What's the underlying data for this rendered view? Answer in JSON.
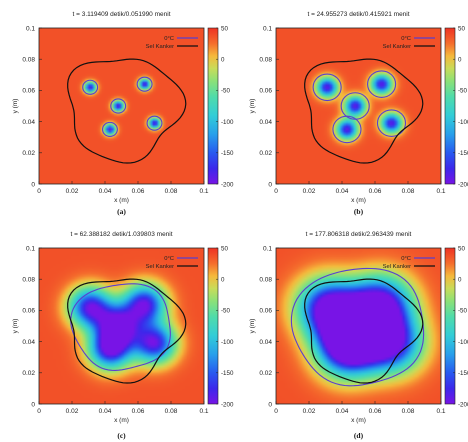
{
  "chart_data": [
    {
      "type": "heatmap",
      "panel_label": "(a)",
      "title": "t = 3.119409 detik/0.051990 menit",
      "xlabel": "x (m)",
      "ylabel": "y (m)",
      "xlim": [
        0,
        0.1
      ],
      "ylim": [
        0,
        0.1
      ],
      "x_ticks": [
        "0",
        "0.02",
        "0.04",
        "0.06",
        "0.08",
        "0.1"
      ],
      "y_ticks": [
        "0",
        "0.02",
        "0.04",
        "0.06",
        "0.08",
        "0.1"
      ],
      "colorbar": {
        "range": [
          -200,
          50
        ],
        "ticks": [
          "50",
          "0",
          "-50",
          "-100",
          "-150",
          "-200"
        ]
      },
      "legend": {
        "position": "top-right",
        "entries": [
          {
            "label": "0°C",
            "color": "#5a3fd0"
          },
          {
            "label": "Sel Kanker",
            "color": "#111111"
          }
        ]
      },
      "probes": [
        {
          "x": 0.031,
          "y": 0.062
        },
        {
          "x": 0.064,
          "y": 0.064
        },
        {
          "x": 0.048,
          "y": 0.05
        },
        {
          "x": 0.043,
          "y": 0.035
        },
        {
          "x": 0.07,
          "y": 0.039
        }
      ],
      "cold_spread": 0.0025,
      "cold_peak": -200,
      "zero_contour_radius": 0.0045,
      "merge_blobs": false
    },
    {
      "type": "heatmap",
      "panel_label": "(b)",
      "title": "t = 24.955273 detik/0.415921 menit",
      "xlabel": "x (m)",
      "ylabel": "y (m)",
      "xlim": [
        0,
        0.1
      ],
      "ylim": [
        0,
        0.1
      ],
      "x_ticks": [
        "0",
        "0.02",
        "0.04",
        "0.06",
        "0.08",
        "0.1"
      ],
      "y_ticks": [
        "0",
        "0.02",
        "0.04",
        "0.06",
        "0.08",
        "0.1"
      ],
      "colorbar": {
        "range": [
          -200,
          50
        ],
        "ticks": [
          "50",
          "0",
          "-50",
          "-100",
          "-150",
          "-200"
        ]
      },
      "legend": {
        "position": "top-right",
        "entries": [
          {
            "label": "0°C",
            "color": "#5a3fd0"
          },
          {
            "label": "Sel Kanker",
            "color": "#111111"
          }
        ]
      },
      "probes": [
        {
          "x": 0.031,
          "y": 0.062
        },
        {
          "x": 0.064,
          "y": 0.064
        },
        {
          "x": 0.048,
          "y": 0.05
        },
        {
          "x": 0.043,
          "y": 0.035
        },
        {
          "x": 0.07,
          "y": 0.039
        }
      ],
      "cold_spread": 0.0045,
      "cold_peak": -200,
      "zero_contour_radius": 0.0085,
      "merge_blobs": false
    },
    {
      "type": "heatmap",
      "panel_label": "(c)",
      "title": "t = 62.388182 detik/1.039803 menit",
      "xlabel": "x (m)",
      "ylabel": "y (m)",
      "xlim": [
        0,
        0.1
      ],
      "ylim": [
        0,
        0.1
      ],
      "x_ticks": [
        "0",
        "0.02",
        "0.04",
        "0.06",
        "0.08",
        "0.1"
      ],
      "y_ticks": [
        "0",
        "0.02",
        "0.04",
        "0.06",
        "0.08",
        "0.1"
      ],
      "colorbar": {
        "range": [
          -200,
          50
        ],
        "ticks": [
          "50",
          "0",
          "-50",
          "-100",
          "-150",
          "-200"
        ]
      },
      "legend": {
        "position": "top-right",
        "entries": [
          {
            "label": "0°C",
            "color": "#5a3fd0"
          },
          {
            "label": "Sel Kanker",
            "color": "#111111"
          }
        ]
      },
      "probes": [
        {
          "x": 0.031,
          "y": 0.062
        },
        {
          "x": 0.064,
          "y": 0.064
        },
        {
          "x": 0.048,
          "y": 0.05
        },
        {
          "x": 0.043,
          "y": 0.035
        },
        {
          "x": 0.07,
          "y": 0.039
        }
      ],
      "cold_spread": 0.009,
      "cold_peak": -200,
      "zero_contour_radius": 0.026,
      "merge_blobs": true
    },
    {
      "type": "heatmap",
      "panel_label": "(d)",
      "title": "t = 177.806318 detik/2.963439 menit",
      "xlabel": "x (m)",
      "ylabel": "y (m)",
      "xlim": [
        0,
        0.1
      ],
      "ylim": [
        0,
        0.1
      ],
      "x_ticks": [
        "0",
        "0.02",
        "0.04",
        "0.06",
        "0.08",
        "0.1"
      ],
      "y_ticks": [
        "0",
        "0.02",
        "0.04",
        "0.06",
        "0.08",
        "0.1"
      ],
      "colorbar": {
        "range": [
          -200,
          50
        ],
        "ticks": [
          "50",
          "0",
          "-50",
          "-100",
          "-150",
          "-200"
        ]
      },
      "legend": {
        "position": "top-right",
        "entries": [
          {
            "label": "0°C",
            "color": "#5a3fd0"
          },
          {
            "label": "Sel Kanker",
            "color": "#111111"
          }
        ]
      },
      "probes": [
        {
          "x": 0.031,
          "y": 0.062
        },
        {
          "x": 0.064,
          "y": 0.064
        },
        {
          "x": 0.048,
          "y": 0.05
        },
        {
          "x": 0.043,
          "y": 0.035
        },
        {
          "x": 0.07,
          "y": 0.039
        }
      ],
      "cold_spread": 0.013,
      "cold_peak": -200,
      "zero_contour_radius": 0.036,
      "merge_blobs": true
    }
  ]
}
